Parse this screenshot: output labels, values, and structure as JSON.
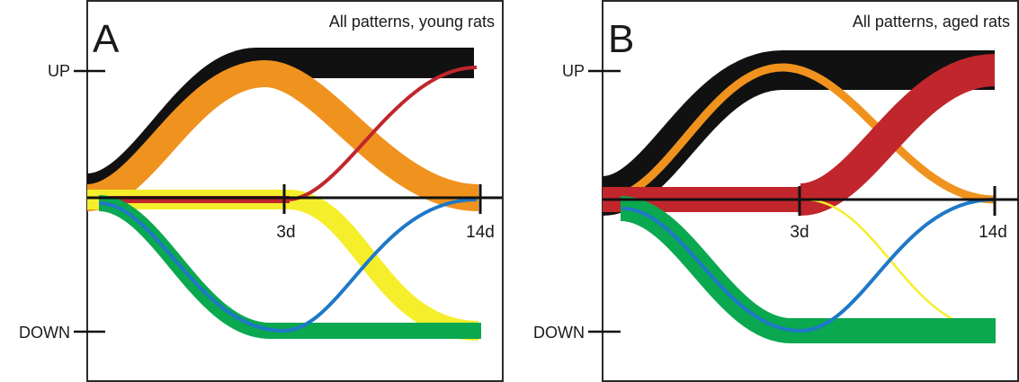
{
  "colors": {
    "black": "#111111",
    "orange": "#f0921e",
    "red": "#c0262c",
    "yellow": "#f5ee2a",
    "green": "#0aa84f",
    "blue": "#1f78c8",
    "frame": "#2a2a2a"
  },
  "panels": [
    {
      "letter": "A",
      "title": "All patterns, young rats",
      "y_labels": {
        "up": "UP",
        "down": "DOWN"
      },
      "x_ticks": [
        "3d",
        "14d"
      ],
      "patterns": [
        {
          "color": "black",
          "shape": "up-plateau",
          "thickness": 34,
          "hold_end": true
        },
        {
          "color": "orange",
          "shape": "up-return",
          "thickness": 30
        },
        {
          "color": "red",
          "shape": "late-up",
          "thickness": 4
        },
        {
          "color": "red",
          "shape": "flat",
          "thickness": 10
        },
        {
          "color": "yellow",
          "shape": "late-down",
          "thickness": 22
        },
        {
          "color": "green",
          "shape": "down-plateau",
          "thickness": 18
        },
        {
          "color": "blue",
          "shape": "down-return",
          "thickness": 4
        }
      ]
    },
    {
      "letter": "B",
      "title": "All patterns, aged rats",
      "y_labels": {
        "up": "UP",
        "down": "DOWN"
      },
      "x_ticks": [
        "3d",
        "14d"
      ],
      "patterns": [
        {
          "color": "black",
          "shape": "up-plateau",
          "thickness": 44
        },
        {
          "color": "orange",
          "shape": "up-return",
          "thickness": 8
        },
        {
          "color": "red",
          "shape": "late-up",
          "thickness": 36
        },
        {
          "color": "red",
          "shape": "flat",
          "thickness": 28
        },
        {
          "color": "yellow",
          "shape": "late-down",
          "thickness": 2
        },
        {
          "color": "green",
          "shape": "down-plateau",
          "thickness": 28
        },
        {
          "color": "blue",
          "shape": "down-return",
          "thickness": 4
        }
      ]
    }
  ]
}
